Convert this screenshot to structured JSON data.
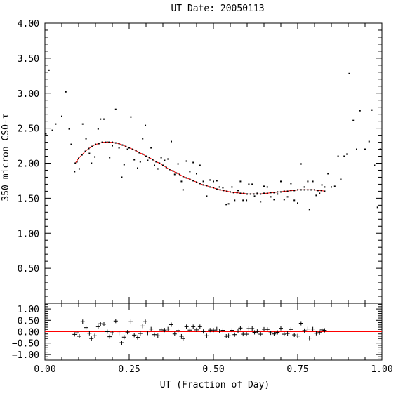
{
  "chart_data": [
    {
      "type": "scatter",
      "title": "UT Date: 20050113",
      "xlabel": "",
      "ylabel": "350 micron CSO-τ",
      "xlim": [
        0,
        1
      ],
      "ylim": [
        0,
        4
      ],
      "grid": false,
      "x_ticks": [
        "0.00",
        "0.25",
        "0.50",
        "0.75",
        "1.00"
      ],
      "y_ticks": [
        "0.50",
        "1.00",
        "1.50",
        "2.00",
        "2.50",
        "3.00",
        "3.50",
        "4.00"
      ],
      "y_tick_values": [
        0.5,
        1.0,
        1.5,
        2.0,
        2.5,
        3.0,
        3.5,
        4.0
      ],
      "series": [
        {
          "marker": "dot",
          "color": "#000000",
          "points": [
            [
              0.003,
              2.42
            ],
            [
              0.012,
              3.33
            ],
            [
              0.022,
              2.47
            ],
            [
              0.032,
              2.56
            ],
            [
              0.05,
              2.67
            ],
            [
              0.062,
              3.02
            ],
            [
              0.072,
              2.49
            ],
            [
              0.078,
              2.27
            ],
            [
              0.088,
              1.88
            ],
            [
              0.095,
              2.02
            ],
            [
              0.102,
              1.92
            ],
            [
              0.112,
              2.56
            ],
            [
              0.122,
              2.35
            ],
            [
              0.132,
              2.14
            ],
            [
              0.138,
              2.0
            ],
            [
              0.148,
              2.09
            ],
            [
              0.158,
              2.49
            ],
            [
              0.165,
              2.63
            ],
            [
              0.175,
              2.63
            ],
            [
              0.185,
              2.3
            ],
            [
              0.192,
              2.08
            ],
            [
              0.2,
              2.25
            ],
            [
              0.21,
              2.77
            ],
            [
              0.22,
              2.22
            ],
            [
              0.228,
              1.8
            ],
            [
              0.235,
              1.98
            ],
            [
              0.245,
              2.2
            ],
            [
              0.255,
              2.66
            ],
            [
              0.265,
              2.05
            ],
            [
              0.275,
              1.93
            ],
            [
              0.283,
              2.02
            ],
            [
              0.29,
              2.35
            ],
            [
              0.298,
              2.54
            ],
            [
              0.305,
              2.04
            ],
            [
              0.315,
              2.22
            ],
            [
              0.325,
              1.97
            ],
            [
              0.335,
              1.92
            ],
            [
              0.345,
              2.08
            ],
            [
              0.355,
              2.04
            ],
            [
              0.365,
              2.06
            ],
            [
              0.375,
              2.31
            ],
            [
              0.385,
              1.84
            ],
            [
              0.395,
              1.99
            ],
            [
              0.405,
              1.74
            ],
            [
              0.41,
              1.62
            ],
            [
              0.42,
              2.03
            ],
            [
              0.43,
              1.88
            ],
            [
              0.44,
              2.01
            ],
            [
              0.45,
              1.85
            ],
            [
              0.46,
              1.97
            ],
            [
              0.47,
              1.74
            ],
            [
              0.48,
              1.53
            ],
            [
              0.49,
              1.76
            ],
            [
              0.5,
              1.74
            ],
            [
              0.51,
              1.75
            ],
            [
              0.518,
              1.66
            ],
            [
              0.528,
              1.65
            ],
            [
              0.538,
              1.41
            ],
            [
              0.545,
              1.42
            ],
            [
              0.555,
              1.66
            ],
            [
              0.563,
              1.47
            ],
            [
              0.573,
              1.61
            ],
            [
              0.58,
              1.74
            ],
            [
              0.588,
              1.47
            ],
            [
              0.598,
              1.47
            ],
            [
              0.605,
              1.7
            ],
            [
              0.615,
              1.7
            ],
            [
              0.622,
              1.53
            ],
            [
              0.63,
              1.57
            ],
            [
              0.64,
              1.45
            ],
            [
              0.65,
              1.67
            ],
            [
              0.66,
              1.66
            ],
            [
              0.67,
              1.52
            ],
            [
              0.68,
              1.48
            ],
            [
              0.69,
              1.56
            ],
            [
              0.7,
              1.74
            ],
            [
              0.71,
              1.48
            ],
            [
              0.72,
              1.52
            ],
            [
              0.73,
              1.71
            ],
            [
              0.74,
              1.47
            ],
            [
              0.75,
              1.43
            ],
            [
              0.76,
              1.99
            ],
            [
              0.77,
              1.66
            ],
            [
              0.78,
              1.74
            ],
            [
              0.785,
              1.34
            ],
            [
              0.795,
              1.74
            ],
            [
              0.805,
              1.54
            ],
            [
              0.815,
              1.57
            ],
            [
              0.822,
              1.69
            ],
            [
              0.83,
              1.66
            ],
            [
              0.84,
              1.85
            ],
            [
              0.85,
              1.66
            ],
            [
              0.86,
              1.67
            ],
            [
              0.87,
              2.1
            ],
            [
              0.878,
              1.77
            ],
            [
              0.888,
              2.1
            ],
            [
              0.896,
              2.13
            ],
            [
              0.903,
              3.28
            ],
            [
              0.915,
              2.61
            ],
            [
              0.925,
              2.2
            ],
            [
              0.935,
              2.75
            ],
            [
              0.95,
              2.2
            ],
            [
              0.962,
              2.31
            ],
            [
              0.97,
              2.76
            ],
            [
              0.978,
              1.97
            ],
            [
              0.987,
              1.37
            ],
            [
              0.995,
              2.2
            ]
          ]
        },
        {
          "marker": "line",
          "color": "#ff0000",
          "x": [
            0.09,
            0.1,
            0.11,
            0.12,
            0.13,
            0.14,
            0.15,
            0.16,
            0.17,
            0.18,
            0.19,
            0.2,
            0.21,
            0.22,
            0.23,
            0.24,
            0.25,
            0.26,
            0.27,
            0.28,
            0.29,
            0.3,
            0.31,
            0.32,
            0.33,
            0.34,
            0.35,
            0.36,
            0.37,
            0.38,
            0.39,
            0.4,
            0.41,
            0.42,
            0.43,
            0.44,
            0.45,
            0.46,
            0.47,
            0.48,
            0.49,
            0.5,
            0.51,
            0.52,
            0.53,
            0.54,
            0.55,
            0.56,
            0.57,
            0.58,
            0.59,
            0.6,
            0.61,
            0.62,
            0.63,
            0.64,
            0.65,
            0.66,
            0.67,
            0.68,
            0.69,
            0.7,
            0.71,
            0.72,
            0.73,
            0.74,
            0.75,
            0.76,
            0.77,
            0.78,
            0.79,
            0.8,
            0.81,
            0.82,
            0.83
          ],
          "y": [
            2.0,
            2.07,
            2.12,
            2.17,
            2.21,
            2.24,
            2.27,
            2.28,
            2.3,
            2.3,
            2.3,
            2.3,
            2.29,
            2.28,
            2.26,
            2.24,
            2.22,
            2.2,
            2.18,
            2.15,
            2.13,
            2.1,
            2.08,
            2.05,
            2.02,
            2.0,
            1.97,
            1.94,
            1.91,
            1.89,
            1.86,
            1.84,
            1.81,
            1.79,
            1.77,
            1.75,
            1.73,
            1.71,
            1.69,
            1.68,
            1.66,
            1.65,
            1.63,
            1.62,
            1.61,
            1.6,
            1.59,
            1.58,
            1.58,
            1.57,
            1.57,
            1.56,
            1.56,
            1.56,
            1.56,
            1.56,
            1.57,
            1.57,
            1.58,
            1.58,
            1.59,
            1.59,
            1.6,
            1.6,
            1.61,
            1.61,
            1.62,
            1.62,
            1.62,
            1.62,
            1.62,
            1.62,
            1.61,
            1.61,
            1.6
          ]
        }
      ]
    },
    {
      "type": "scatter",
      "title": "",
      "xlabel": "UT (Fraction of Day)",
      "ylabel": "",
      "xlim": [
        0,
        1
      ],
      "ylim": [
        -1.25,
        1.25
      ],
      "grid": false,
      "x_ticks": [
        "0.00",
        "0.25",
        "0.50",
        "0.75",
        "1.00"
      ],
      "x_tick_values": [
        0,
        0.25,
        0.5,
        0.75,
        1.0
      ],
      "y_ticks": [
        "−1.00",
        "−0.50",
        "0.00",
        "0.50",
        "1.00"
      ],
      "y_tick_values": [
        -1.0,
        -0.5,
        0.0,
        0.5,
        1.0
      ],
      "reference_line": {
        "y": 0.0,
        "color": "#ff0000"
      },
      "series": [
        {
          "marker": "plus",
          "color": "#000000",
          "points": [
            [
              0.088,
              -0.12
            ],
            [
              0.095,
              -0.05
            ],
            [
              0.102,
              -0.2
            ],
            [
              0.112,
              0.44
            ],
            [
              0.122,
              0.18
            ],
            [
              0.132,
              -0.07
            ],
            [
              0.138,
              -0.3
            ],
            [
              0.148,
              -0.18
            ],
            [
              0.158,
              0.22
            ],
            [
              0.165,
              0.35
            ],
            [
              0.175,
              0.33
            ],
            [
              0.185,
              0.0
            ],
            [
              0.192,
              -0.22
            ],
            [
              0.2,
              -0.05
            ],
            [
              0.21,
              0.47
            ],
            [
              0.22,
              -0.06
            ],
            [
              0.228,
              -0.48
            ],
            [
              0.235,
              -0.24
            ],
            [
              0.245,
              -0.02
            ],
            [
              0.255,
              0.44
            ],
            [
              0.265,
              -0.15
            ],
            [
              0.275,
              -0.25
            ],
            [
              0.283,
              -0.08
            ],
            [
              0.29,
              0.25
            ],
            [
              0.298,
              0.44
            ],
            [
              0.305,
              -0.06
            ],
            [
              0.315,
              0.12
            ],
            [
              0.325,
              -0.13
            ],
            [
              0.335,
              -0.18
            ],
            [
              0.345,
              0.08
            ],
            [
              0.355,
              0.07
            ],
            [
              0.365,
              0.12
            ],
            [
              0.375,
              0.31
            ],
            [
              0.385,
              -0.1
            ],
            [
              0.395,
              0.05
            ],
            [
              0.405,
              -0.2
            ],
            [
              0.41,
              -0.3
            ],
            [
              0.42,
              0.22
            ],
            [
              0.43,
              0.07
            ],
            [
              0.44,
              0.22
            ],
            [
              0.45,
              0.08
            ],
            [
              0.46,
              0.22
            ],
            [
              0.47,
              0.01
            ],
            [
              0.48,
              -0.18
            ],
            [
              0.49,
              0.07
            ],
            [
              0.5,
              0.07
            ],
            [
              0.51,
              0.12
            ],
            [
              0.518,
              0.03
            ],
            [
              0.528,
              0.06
            ],
            [
              0.538,
              -0.2
            ],
            [
              0.545,
              -0.18
            ],
            [
              0.555,
              0.06
            ],
            [
              0.563,
              -0.13
            ],
            [
              0.573,
              0.03
            ],
            [
              0.58,
              0.16
            ],
            [
              0.588,
              -0.11
            ],
            [
              0.598,
              -0.11
            ],
            [
              0.605,
              0.14
            ],
            [
              0.615,
              0.14
            ],
            [
              0.622,
              -0.03
            ],
            [
              0.63,
              0.01
            ],
            [
              0.64,
              -0.11
            ],
            [
              0.65,
              0.11
            ],
            [
              0.66,
              0.1
            ],
            [
              0.67,
              -0.05
            ],
            [
              0.68,
              -0.1
            ],
            [
              0.69,
              -0.03
            ],
            [
              0.7,
              0.15
            ],
            [
              0.71,
              -0.11
            ],
            [
              0.72,
              -0.08
            ],
            [
              0.73,
              0.1
            ],
            [
              0.74,
              -0.14
            ],
            [
              0.75,
              -0.19
            ],
            [
              0.76,
              0.37
            ],
            [
              0.77,
              0.05
            ],
            [
              0.78,
              0.12
            ],
            [
              0.785,
              -0.28
            ],
            [
              0.795,
              0.12
            ],
            [
              0.805,
              -0.07
            ],
            [
              0.815,
              -0.04
            ],
            [
              0.822,
              0.08
            ],
            [
              0.83,
              0.06
            ]
          ]
        }
      ]
    }
  ]
}
